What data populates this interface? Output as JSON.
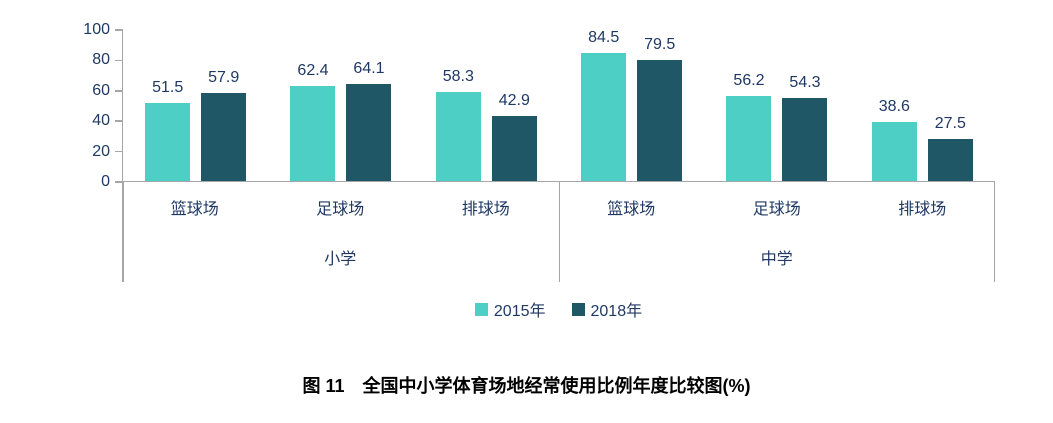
{
  "chart_data": {
    "type": "bar",
    "title": "全国中小学体育场地经常使用比例年度比较图(%)",
    "groups": [
      {
        "label": "小学",
        "categories": [
          "篮球场",
          "足球场",
          "排球场"
        ]
      },
      {
        "label": "中学",
        "categories": [
          "篮球场",
          "足球场",
          "排球场"
        ]
      }
    ],
    "series": [
      {
        "name": "2015年",
        "color": "#4dcfc6",
        "values": [
          [
            51.5,
            62.4,
            58.3
          ],
          [
            84.5,
            56.2,
            38.6
          ]
        ]
      },
      {
        "name": "2018年",
        "color": "#205766",
        "values": [
          [
            57.9,
            64.1,
            42.9
          ],
          [
            79.5,
            54.3,
            27.5
          ]
        ]
      }
    ],
    "y_ticks": [
      100,
      80,
      60,
      40,
      20,
      0
    ],
    "ylim": [
      0,
      100
    ],
    "grid": false,
    "legend_position": "bottom",
    "colors": {
      "axis_line": "#a6a6a6",
      "axis_text": "#1f3864",
      "caption_text": "#000000"
    }
  },
  "caption": "图 11　全国中小学体育场地经常使用比例年度比较图(%)"
}
